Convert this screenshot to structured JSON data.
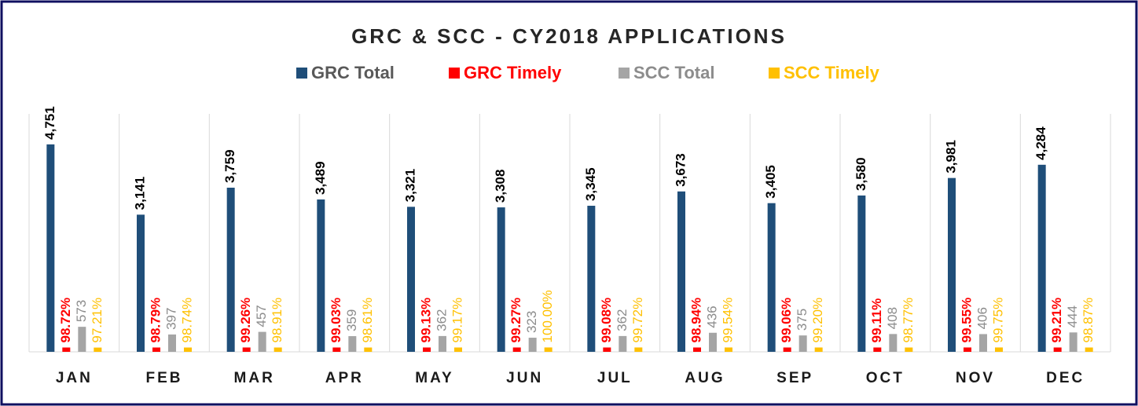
{
  "chart_data": {
    "type": "bar",
    "title": "GRC & SCC - CY2018 APPLICATIONS",
    "categories": [
      "JAN",
      "FEB",
      "MAR",
      "APR",
      "MAY",
      "JUN",
      "JUL",
      "AUG",
      "SEP",
      "OCT",
      "NOV",
      "DEC"
    ],
    "ylim": [
      0,
      5000
    ],
    "grid": true,
    "series": [
      {
        "name": "GRC Total",
        "color": "#1f4e79",
        "label_color": "#000000",
        "legend_color": "#595959",
        "values": [
          4751,
          3141,
          3759,
          3489,
          3321,
          3308,
          3345,
          3673,
          3405,
          3580,
          3981,
          4284
        ],
        "value_labels": [
          "4,751",
          "3,141",
          "3,759",
          "3,489",
          "3,321",
          "3,308",
          "3,345",
          "3,673",
          "3,405",
          "3,580",
          "3,981",
          "4,284"
        ]
      },
      {
        "name": "GRC Timely",
        "color": "#ff0000",
        "label_color": "#ff0000",
        "legend_color": "#ff0000",
        "values": [
          98.72,
          98.79,
          99.26,
          99.03,
          99.13,
          99.27,
          99.08,
          98.94,
          99.06,
          99.11,
          99.55,
          99.21
        ],
        "value_labels": [
          "98.72%",
          "98.79%",
          "99.26%",
          "99.03%",
          "99.13%",
          "99.27%",
          "99.08%",
          "98.94%",
          "99.06%",
          "99.11%",
          "99.55%",
          "99.21%"
        ]
      },
      {
        "name": "SCC Total",
        "color": "#a5a5a5",
        "label_color": "#8c8c8c",
        "legend_color": "#8c8c8c",
        "values": [
          573,
          397,
          457,
          359,
          362,
          323,
          362,
          436,
          375,
          408,
          406,
          444
        ]
      },
      {
        "name": "SCC Timely",
        "color": "#ffc000",
        "label_color": "#ffc000",
        "legend_color": "#ffc000",
        "values": [
          97.21,
          98.74,
          98.91,
          98.61,
          99.17,
          100,
          99.72,
          99.54,
          99.2,
          98.77,
          99.75,
          98.87
        ],
        "value_labels": [
          "97.21%",
          "98.74%",
          "98.91%",
          "98.61%",
          "99.17%",
          "100.00%",
          "99.72%",
          "99.54%",
          "99.20%",
          "98.77%",
          "99.75%",
          "98.87%"
        ]
      }
    ]
  }
}
